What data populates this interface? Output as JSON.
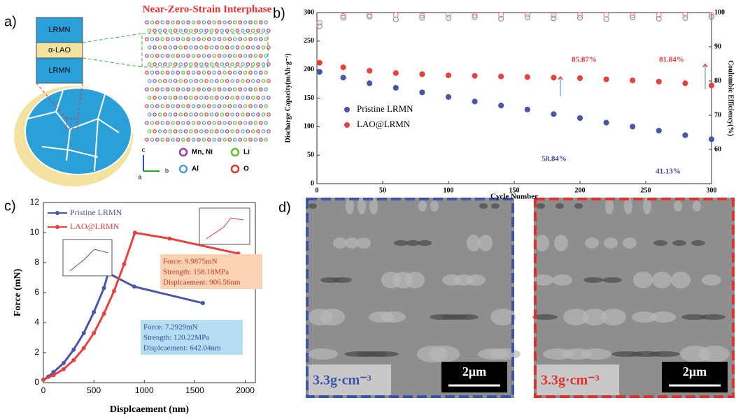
{
  "panel_labels": [
    "a)",
    "b)",
    "c)",
    "d)"
  ],
  "diagram": {
    "title": "Near-Zero-Strain Interphase",
    "layers": [
      "LRMN",
      "α-LAO",
      "LRMN"
    ],
    "legend": [
      "Mn, Ni",
      "Li",
      "Al",
      "O"
    ],
    "axes": [
      "c",
      "a",
      "b"
    ]
  },
  "chart_data": [
    {
      "type": "scatter",
      "xlabel": "Cycle Number",
      "ylabel": "Discharge Capacity(mAh·g⁻¹)",
      "y2label": "Coulombic Efficiency(%)",
      "x": [
        2,
        20,
        40,
        60,
        80,
        100,
        120,
        140,
        160,
        180,
        200,
        220,
        240,
        260,
        280,
        300
      ],
      "series": [
        {
          "name": "Pristine LRMN",
          "color": "#4a56a6",
          "values": [
            196,
            186,
            176,
            168,
            160,
            152,
            144,
            137,
            130,
            122,
            115,
            107,
            100,
            93,
            85,
            78
          ]
        },
        {
          "name": "LAO@LRMN",
          "color": "#e8423f",
          "values": [
            212,
            204,
            198,
            194,
            192,
            190,
            189,
            188,
            187,
            186,
            185,
            183,
            181,
            179,
            176,
            172
          ]
        },
        {
          "color": "#8a90c8",
          "axis": "y2",
          "values": [
            96,
            98.5,
            98.8,
            98,
            98.5,
            98.4,
            98.7,
            98.2,
            98.6,
            98.3,
            98.5,
            98.1,
            98.6,
            98.2,
            98.4,
            98.7
          ]
        },
        {
          "color": "#f08a88",
          "axis": "y2",
          "values": [
            97,
            99,
            99.2,
            99.3,
            99.1,
            99.4,
            99.2,
            99.3,
            99.4,
            99.2,
            99.3,
            99.4,
            99.2,
            99.3,
            99.4,
            99.3
          ]
        }
      ],
      "xlim": [
        0,
        300
      ],
      "xticks": [
        0,
        50,
        100,
        150,
        200,
        250,
        300
      ],
      "ylim": [
        0,
        300
      ],
      "yticks": [
        0,
        50,
        100,
        150,
        200,
        250,
        300
      ],
      "y2lim": [
        50,
        100
      ],
      "y2ticks": [
        60,
        70,
        80,
        90,
        100
      ],
      "annotations": [
        "85.87%",
        "81.84%",
        "58.84%",
        "41.13%"
      ]
    },
    {
      "type": "line",
      "xlabel": "Displcaement (nm)",
      "ylabel": "Force (mN)",
      "series": [
        {
          "name": "Pristine LRMN",
          "color": "#4a56a6",
          "x": [
            0,
            50,
            100,
            200,
            300,
            400,
            500,
            600,
            642.04,
            900,
            1580
          ],
          "values": [
            0.2,
            0.4,
            0.7,
            1.3,
            2.2,
            3.3,
            4.7,
            6.3,
            7.2929,
            6.4,
            5.3
          ]
        },
        {
          "name": "LAO@LRMN",
          "color": "#e8423f",
          "x": [
            0,
            100,
            200,
            300,
            400,
            500,
            600,
            700,
            800,
            906.56,
            1250,
            1930
          ],
          "values": [
            0.2,
            0.5,
            0.9,
            1.5,
            2.3,
            3.3,
            4.6,
            6.1,
            7.9,
            9.9875,
            9.6,
            8.6
          ]
        }
      ],
      "xlim": [
        0,
        2100
      ],
      "xticks": [
        0,
        500,
        1000,
        1500,
        2000
      ],
      "ylim": [
        0,
        12
      ],
      "yticks": [
        0,
        2,
        4,
        6,
        8,
        10,
        12
      ],
      "annotations": [
        [
          "Force:  9.9875mN",
          "Strength:  158.18MPa",
          "Displcaement:  906.56nm"
        ],
        [
          "Force:  7.2929mN",
          "Strength:  120.22MPa",
          "Displcaement:  642.04nm"
        ]
      ]
    }
  ],
  "images": [
    {
      "density_label": "3.3g·cm⁻³",
      "scale_bar": "2μm"
    },
    {
      "density_label": "3.3g·cm⁻³",
      "scale_bar": "2μm"
    }
  ]
}
